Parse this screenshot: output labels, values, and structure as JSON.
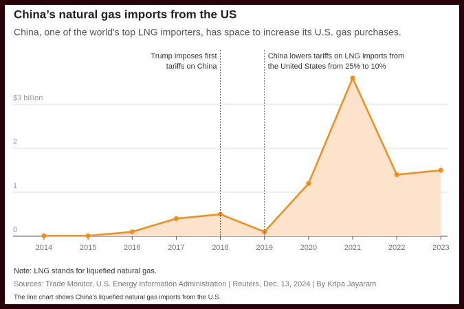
{
  "chart_data": {
    "type": "area",
    "title": "China’s natural gas imports from the US",
    "subtitle": "China, one of the world's top LNG importers, has space to increase its U.S. gas purchases.",
    "x": [
      2014,
      2015,
      2016,
      2017,
      2018,
      2019,
      2020,
      2021,
      2022,
      2023
    ],
    "series": [
      {
        "name": "China's LNG imports from the U.S.",
        "color": "#f28c1a",
        "fill": "#fde3cc",
        "values": [
          0.01,
          0.01,
          0.1,
          0.4,
          0.5,
          0.1,
          1.2,
          3.6,
          1.4,
          1.5
        ]
      }
    ],
    "xlim": [
      2013.3,
      2023.15
    ],
    "xticks": [
      2014,
      2015,
      2016,
      2017,
      2018,
      2019,
      2020,
      2021,
      2022,
      2023
    ],
    "ylim": [
      0,
      3.75
    ],
    "yticks": [
      0,
      1,
      2,
      {
        "value": 3,
        "label": "$3 billion"
      }
    ],
    "grid": true,
    "annotations": [
      {
        "x": 2018,
        "text": [
          "Trump imposes first",
          "tariffs on China"
        ]
      },
      {
        "x": 2019,
        "text": [
          "China lowers tariffs on LNG imports from",
          "the United States from 25% to 10%"
        ]
      }
    ],
    "note": "Note: LNG stands for liquefied natural gas.",
    "source": "Sources: Trade Monitor, U.S. Energy Information Administration | Reuters, Dec. 13, 2024 | By Kripa Jayaram",
    "caption": "The line chart shows China's liquefied natural gas imports from the U.S."
  }
}
